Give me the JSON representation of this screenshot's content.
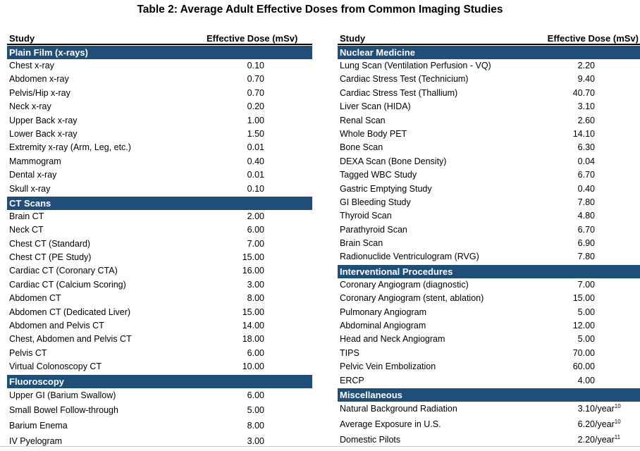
{
  "title": "Table 2: Average Adult Effective Doses from Common Imaging Studies",
  "headers": {
    "study": "Study",
    "dose": "Effective Dose (mSv)"
  },
  "left": [
    {
      "name": "Plain Film (x-rays)",
      "rows": [
        {
          "study": "Chest x-ray",
          "dose": "0.10"
        },
        {
          "study": "Abdomen x-ray",
          "dose": "0.70"
        },
        {
          "study": "Pelvis/Hip x-ray",
          "dose": "0.70"
        },
        {
          "study": "Neck x-ray",
          "dose": "0.20"
        },
        {
          "study": "Upper Back x-ray",
          "dose": "1.00"
        },
        {
          "study": "Lower Back x-ray",
          "dose": "1.50"
        },
        {
          "study": "Extremity x-ray (Arm, Leg, etc.)",
          "dose": "0.01"
        },
        {
          "study": "Mammogram",
          "dose": "0.40"
        },
        {
          "study": "Dental x-ray",
          "dose": "0.01"
        },
        {
          "study": "Skull x-ray",
          "dose": "0.10"
        }
      ]
    },
    {
      "name": "CT Scans",
      "rows": [
        {
          "study": "Brain CT",
          "dose": "2.00"
        },
        {
          "study": "Neck CT",
          "dose": "6.00"
        },
        {
          "study": "Chest CT (Standard)",
          "dose": "7.00"
        },
        {
          "study": "Chest CT (PE Study)",
          "dose": "15.00"
        },
        {
          "study": "Cardiac CT (Coronary CTA)",
          "dose": "16.00"
        },
        {
          "study": "Cardiac CT (Calcium Scoring)",
          "dose": "3.00"
        },
        {
          "study": "Abdomen CT",
          "dose": "8.00"
        },
        {
          "study": "Abdomen CT (Dedicated Liver)",
          "dose": "15.00"
        },
        {
          "study": "Abdomen and Pelvis CT",
          "dose": "14.00"
        },
        {
          "study": "Chest, Abdomen and Pelvis CT",
          "dose": "18.00"
        },
        {
          "study": "Pelvis CT",
          "dose": "6.00"
        },
        {
          "study": "Virtual Colonoscopy CT",
          "dose": "10.00"
        }
      ]
    },
    {
      "name": "Fluoroscopy",
      "tall": true,
      "rows": [
        {
          "study": "Upper GI (Barium Swallow)",
          "dose": "6.00"
        },
        {
          "study": "Small Bowel Follow-through",
          "dose": "5.00"
        },
        {
          "study": "Barium Enema",
          "dose": "8.00"
        },
        {
          "study": "IV Pyelogram",
          "dose": "3.00"
        }
      ]
    }
  ],
  "right": [
    {
      "name": "Nuclear Medicine",
      "rows": [
        {
          "study": "Lung Scan (Ventilation Perfusion - VQ)",
          "dose": "2.20"
        },
        {
          "study": "Cardiac Stress Test (Technicium)",
          "dose": "9.40"
        },
        {
          "study": "Cardiac Stress Test (Thallium)",
          "dose": "40.70"
        },
        {
          "study": "Liver Scan (HIDA)",
          "dose": "3.10"
        },
        {
          "study": "Renal Scan",
          "dose": "2.60"
        },
        {
          "study": "Whole Body PET",
          "dose": "14.10"
        },
        {
          "study": "Bone Scan",
          "dose": "6.30"
        },
        {
          "study": "DEXA Scan (Bone Density)",
          "dose": "0.04"
        },
        {
          "study": "Tagged WBC Study",
          "dose": "6.70"
        },
        {
          "study": "Gastric Emptying Study",
          "dose": "0.40"
        },
        {
          "study": "GI Bleeding Study",
          "dose": "7.80"
        },
        {
          "study": "Thyroid Scan",
          "dose": "4.80"
        },
        {
          "study": "Parathyroid Scan",
          "dose": "6.70"
        },
        {
          "study": "Brain Scan",
          "dose": "6.90"
        },
        {
          "study": "Radionuclide Ventriculogram (RVG)",
          "dose": "7.80"
        }
      ]
    },
    {
      "name": "Interventional Procedures",
      "rows": [
        {
          "study": "Coronary Angiogram (diagnostic)",
          "dose": "7.00"
        },
        {
          "study": "Coronary Angiogram (stent, ablation)",
          "dose": "15.00"
        },
        {
          "study": "Pulmonary Angiogram",
          "dose": "5.00"
        },
        {
          "study": "Abdominal Angiogram",
          "dose": "12.00"
        },
        {
          "study": "Head and Neck Angiogram",
          "dose": "5.00"
        },
        {
          "study": "TIPS",
          "dose": "70.00"
        },
        {
          "study": "Pelvic Vein Embolization",
          "dose": "60.00"
        },
        {
          "study": "ERCP",
          "dose": "4.00"
        }
      ]
    },
    {
      "name": "Miscellaneous",
      "tall": true,
      "rows": [
        {
          "study": "Natural Background Radiation",
          "dose": "3.10",
          "suffix": "/year",
          "sup": "10"
        },
        {
          "study": "Average Exposure in U.S.",
          "dose": "6.20",
          "suffix": "/year",
          "sup": "10"
        },
        {
          "study": "Domestic Pilots",
          "dose": "2.20",
          "suffix": "/year",
          "sup": "11"
        }
      ]
    }
  ]
}
